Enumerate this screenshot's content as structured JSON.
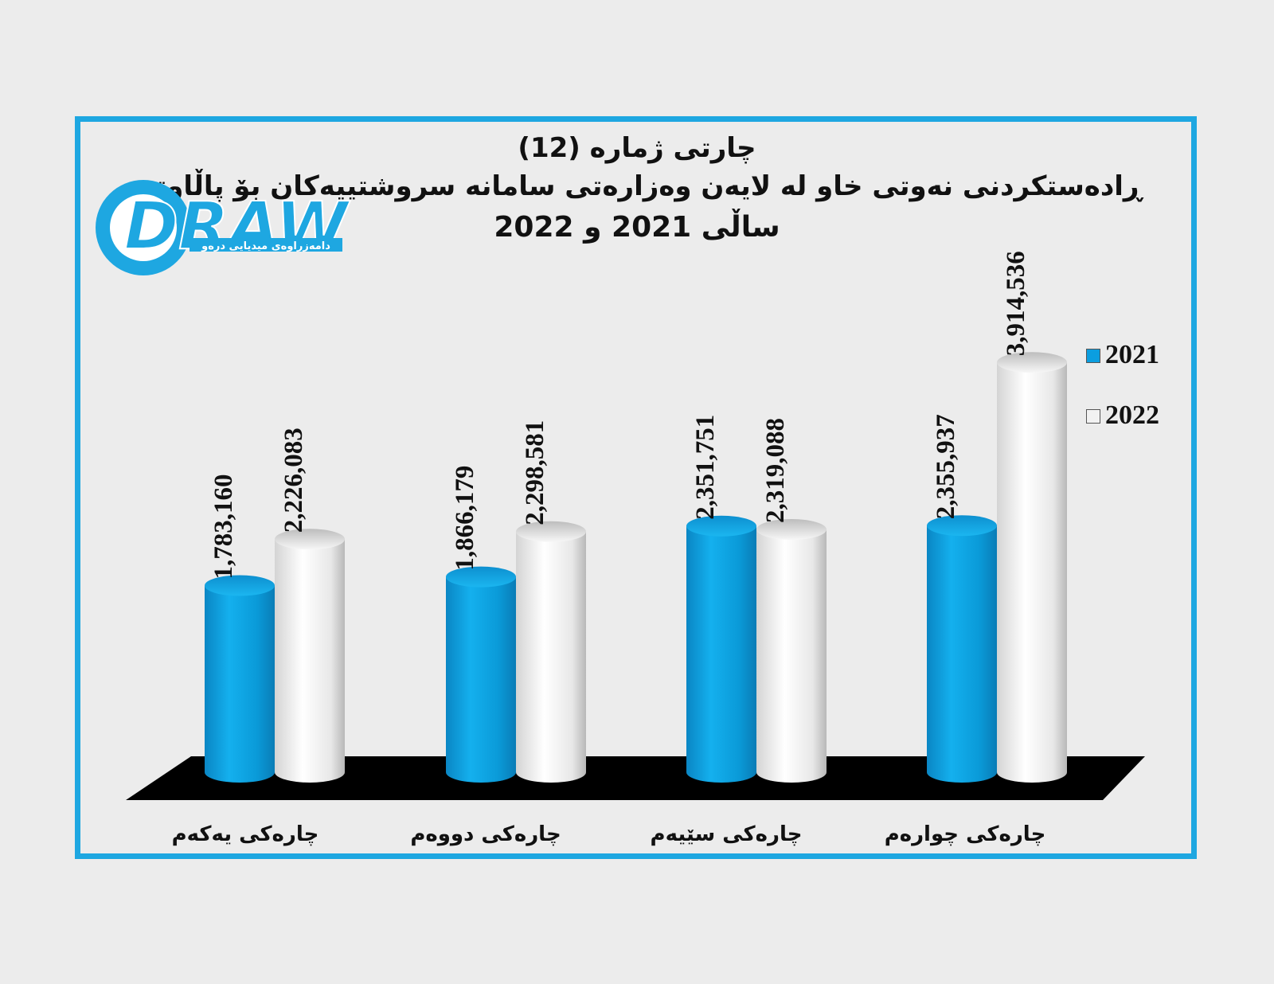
{
  "title": "چارتی ژماره (12)",
  "subtitle": "ڕادەستکردنی نەوتی خاو لە لایەن وەزارەتی سامانە سروشتییەکان بۆ پاڵاوتن",
  "subtitle2": "ساڵی 2021 و 2022",
  "logo": {
    "wordmark": "DRAW",
    "tagline": "دامەزراوەی میدیایی درەو"
  },
  "colors": {
    "frame": "#1ea7e1",
    "series_2021": "#0b9ee0",
    "series_2022": "#f2f2f2",
    "floor": "#000000"
  },
  "chart_data": {
    "type": "bar",
    "categories": [
      "چارەکی یەکەم",
      "چارەکی دووەم",
      "چارەکی سێیەم",
      "چارەکی چوارەم"
    ],
    "series": [
      {
        "name": "2021",
        "values": [
          1783160,
          1866179,
          2351751,
          2355937
        ]
      },
      {
        "name": "2022",
        "values": [
          2226083,
          2298581,
          2319088,
          3914536
        ]
      }
    ],
    "value_labels": [
      [
        "1,783,160",
        "1,866,179",
        "2,351,751",
        "2,355,937"
      ],
      [
        "2,226,083",
        "2,298,581",
        "2,319,088",
        "3,914,536"
      ]
    ],
    "legend_position": "right",
    "grid": false,
    "style": "3d-cylinder"
  }
}
